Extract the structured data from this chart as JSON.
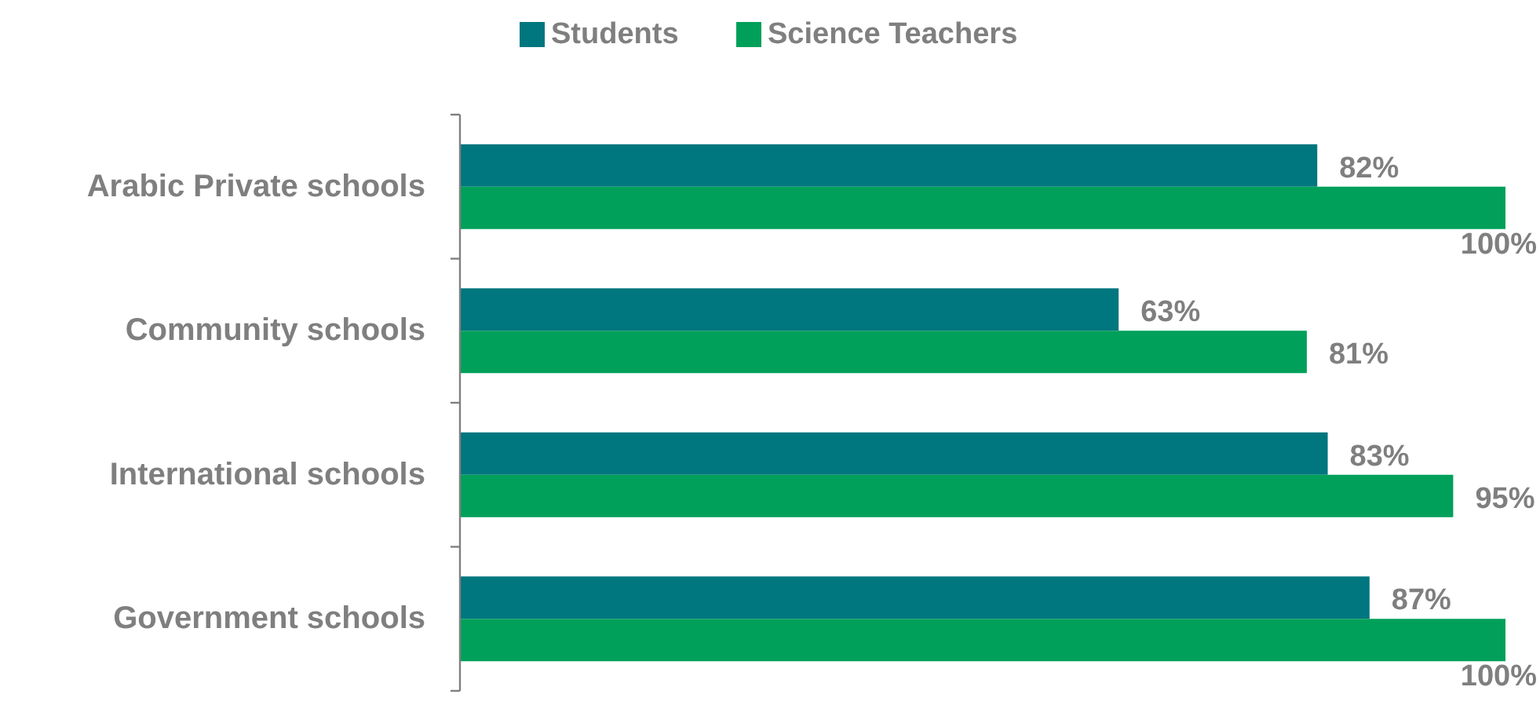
{
  "chart_data": {
    "type": "bar",
    "orientation": "horizontal",
    "categories": [
      "Arabic Private schools",
      "Community schools",
      "International schools",
      "Government schools"
    ],
    "series": [
      {
        "name": "Students",
        "color": "#00767f",
        "values": [
          82,
          63,
          83,
          87
        ],
        "value_labels": [
          "82%",
          "63%",
          "83%",
          "87%"
        ]
      },
      {
        "name": "Science Teachers",
        "color": "#00a05a",
        "values": [
          100,
          81,
          95,
          100
        ],
        "value_labels": [
          "100%",
          "81%",
          "95%",
          "100%"
        ]
      }
    ],
    "legend": "top",
    "grid": false
  }
}
